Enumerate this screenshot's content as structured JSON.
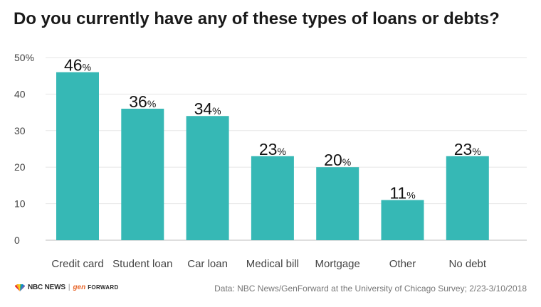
{
  "title": "Do you currently have any of these types of loans or debts?",
  "chart_data": {
    "type": "bar",
    "categories": [
      "Credit card",
      "Student loan",
      "Car loan",
      "Medical bill",
      "Mortgage",
      "Other",
      "No debt"
    ],
    "values": [
      46,
      36,
      34,
      23,
      20,
      11,
      23
    ],
    "value_suffix": "%",
    "ylim": [
      0,
      50
    ],
    "yticks": [
      0,
      10,
      20,
      30,
      40,
      50
    ],
    "ytick_labels": [
      "0",
      "10",
      "20",
      "30",
      "40",
      "50%"
    ],
    "grid": true,
    "bar_color": "#36b8b5"
  },
  "footer": {
    "logo_nbc": "NBC NEWS",
    "logo_sep": "|",
    "logo_gen": "gen",
    "logo_forward": "FORWARD",
    "source": "Data: NBC News/GenForward at the University of Chicago Survey; 2/23-3/10/2018"
  }
}
